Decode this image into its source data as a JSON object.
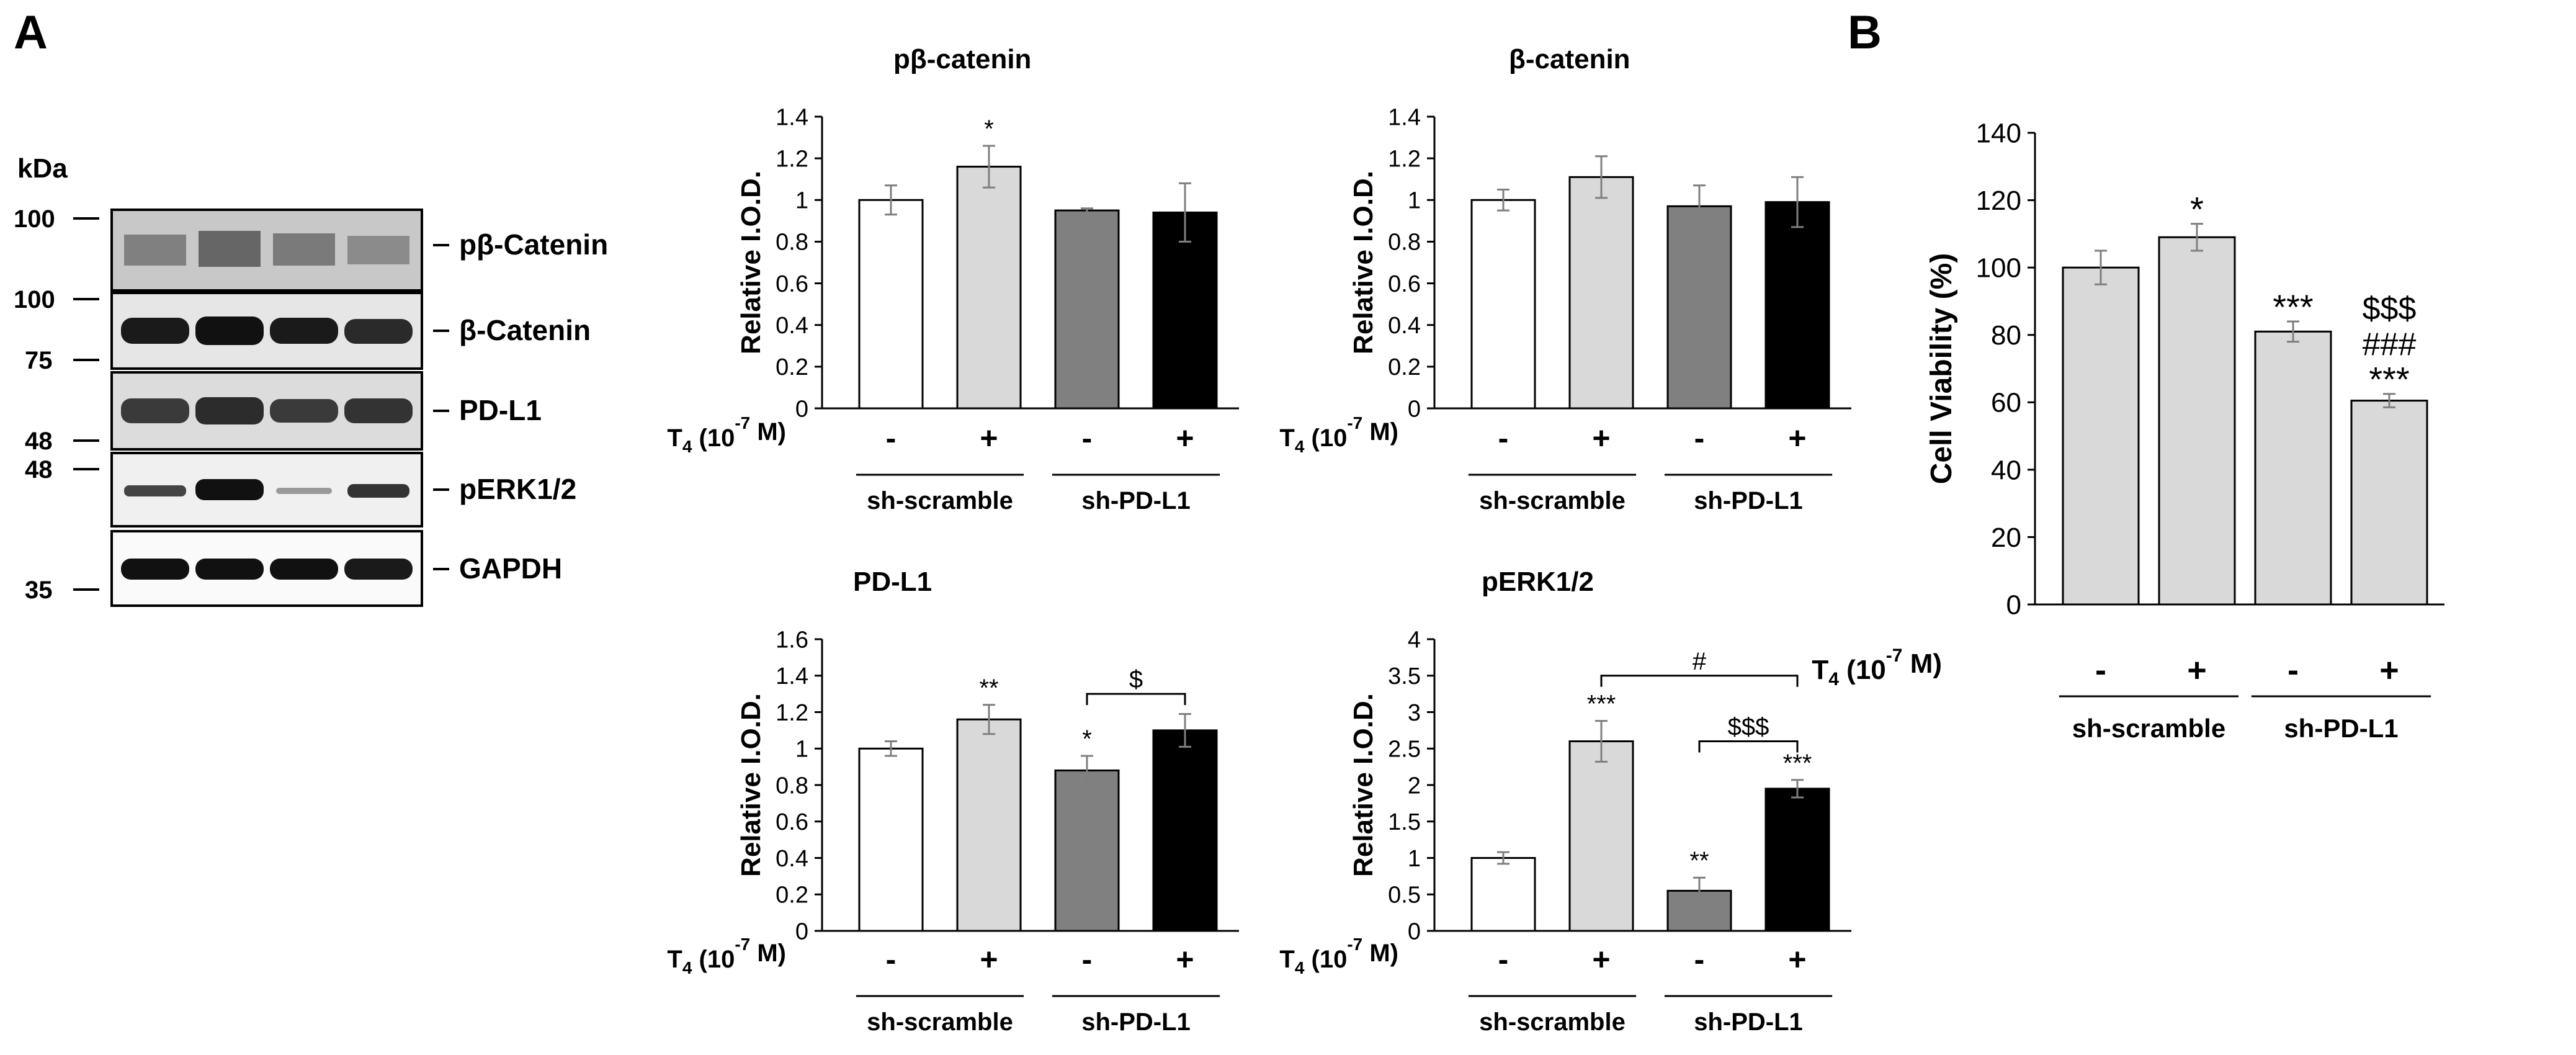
{
  "panel_labels": {
    "a": "A",
    "b": "B"
  },
  "western_blot": {
    "unit": "kDa",
    "markers": [
      "100",
      "100",
      "75",
      "48",
      "48",
      "35"
    ],
    "bands": [
      "pβ-Catenin",
      "β-Catenin",
      "PD-L1",
      "pERK1/2",
      "GAPDH"
    ],
    "lanes": 4
  },
  "treatment": {
    "label_prefix": "T",
    "label_sub": "4",
    "label_dose": " (10",
    "label_exp": "-7",
    "label_suffix": " M)",
    "signs": [
      "-",
      "+",
      "-",
      "+"
    ],
    "groups": [
      "sh-scramble",
      "sh-PD-L1"
    ]
  },
  "colors": {
    "white": "#ffffff",
    "lightgray": "#d9d9d9",
    "darkgray": "#808080",
    "black": "#000000"
  },
  "chart_data": [
    {
      "type": "bar",
      "title": "pβ-catenin",
      "ylabel": "Relative I.O.D.",
      "ylim": [
        0,
        1.4
      ],
      "yticks": [
        "0",
        "0.2",
        "0.4",
        "0.6",
        "0.8",
        "1",
        "1.2",
        "1.4"
      ],
      "tick_step": 0.2,
      "categories": [
        "sh-scramble -",
        "sh-scramble +",
        "sh-PD-L1 -",
        "sh-PD-L1 +"
      ],
      "values": [
        1.0,
        1.16,
        0.95,
        0.94
      ],
      "errors": [
        0.07,
        0.1,
        0.01,
        0.14
      ],
      "fills": [
        "#ffffff",
        "#d9d9d9",
        "#808080",
        "#000000"
      ],
      "annotations": [
        "",
        "*",
        "",
        ""
      ],
      "brackets": []
    },
    {
      "type": "bar",
      "title": "β-catenin",
      "ylabel": "Relative I.O.D.",
      "ylim": [
        0,
        1.4
      ],
      "yticks": [
        "0",
        "0.2",
        "0.4",
        "0.6",
        "0.8",
        "1",
        "1.2",
        "1.4"
      ],
      "tick_step": 0.2,
      "categories": [
        "sh-scramble -",
        "sh-scramble +",
        "sh-PD-L1 -",
        "sh-PD-L1 +"
      ],
      "values": [
        1.0,
        1.11,
        0.97,
        0.99
      ],
      "errors": [
        0.05,
        0.1,
        0.1,
        0.12
      ],
      "fills": [
        "#ffffff",
        "#d9d9d9",
        "#808080",
        "#000000"
      ],
      "annotations": [
        "",
        "",
        "",
        ""
      ],
      "brackets": []
    },
    {
      "type": "bar",
      "title": "PD-L1",
      "ylabel": "Relative I.O.D.",
      "ylim": [
        0,
        1.6
      ],
      "yticks": [
        "0",
        "0.2",
        "0.4",
        "0.6",
        "0.8",
        "1",
        "1.2",
        "1.4",
        "1.6"
      ],
      "tick_step": 0.2,
      "categories": [
        "sh-scramble -",
        "sh-scramble +",
        "sh-PD-L1 -",
        "sh-PD-L1 +"
      ],
      "values": [
        1.0,
        1.16,
        0.88,
        1.1
      ],
      "errors": [
        0.04,
        0.08,
        0.08,
        0.09
      ],
      "fills": [
        "#ffffff",
        "#d9d9d9",
        "#808080",
        "#000000"
      ],
      "annotations": [
        "",
        "**",
        "*",
        ""
      ],
      "brackets": [
        {
          "from": 2,
          "to": 3,
          "level": 1.3,
          "label": "$"
        }
      ]
    },
    {
      "type": "bar",
      "title": "pERK1/2",
      "ylabel": "Relative I.O.D.",
      "ylim": [
        0,
        4
      ],
      "yticks": [
        "0",
        "0.5",
        "1",
        "1.5",
        "2",
        "2.5",
        "3",
        "3.5",
        "4"
      ],
      "tick_step": 0.5,
      "categories": [
        "sh-scramble -",
        "sh-scramble +",
        "sh-PD-L1 -",
        "sh-PD-L1 +"
      ],
      "values": [
        1.0,
        2.6,
        0.55,
        1.95
      ],
      "errors": [
        0.08,
        0.28,
        0.18,
        0.12
      ],
      "fills": [
        "#ffffff",
        "#d9d9d9",
        "#808080",
        "#000000"
      ],
      "annotations": [
        "",
        "***",
        "**",
        "***"
      ],
      "brackets": [
        {
          "from": 1,
          "to": 3,
          "level": 3.5,
          "label": "#"
        },
        {
          "from": 2,
          "to": 3,
          "level": 2.6,
          "label": "$$$"
        }
      ]
    },
    {
      "type": "bar",
      "title": "",
      "ylabel": "Cell Viability (%)",
      "ylim": [
        0,
        140
      ],
      "yticks": [
        "0",
        "20",
        "40",
        "60",
        "80",
        "100",
        "120",
        "140"
      ],
      "tick_step": 20,
      "categories": [
        "sh-scramble -",
        "sh-scramble +",
        "sh-PD-L1 -",
        "sh-PD-L1 +"
      ],
      "values": [
        100,
        109,
        81,
        60.5
      ],
      "errors": [
        5,
        4,
        3,
        2
      ],
      "fills": [
        "#d9d9d9",
        "#d9d9d9",
        "#d9d9d9",
        "#d9d9d9"
      ],
      "annotations": [
        "",
        "*",
        "***",
        "***"
      ],
      "stacked_annotations": [
        [],
        [],
        [],
        [
          "$$$",
          "###"
        ]
      ],
      "brackets": []
    }
  ]
}
